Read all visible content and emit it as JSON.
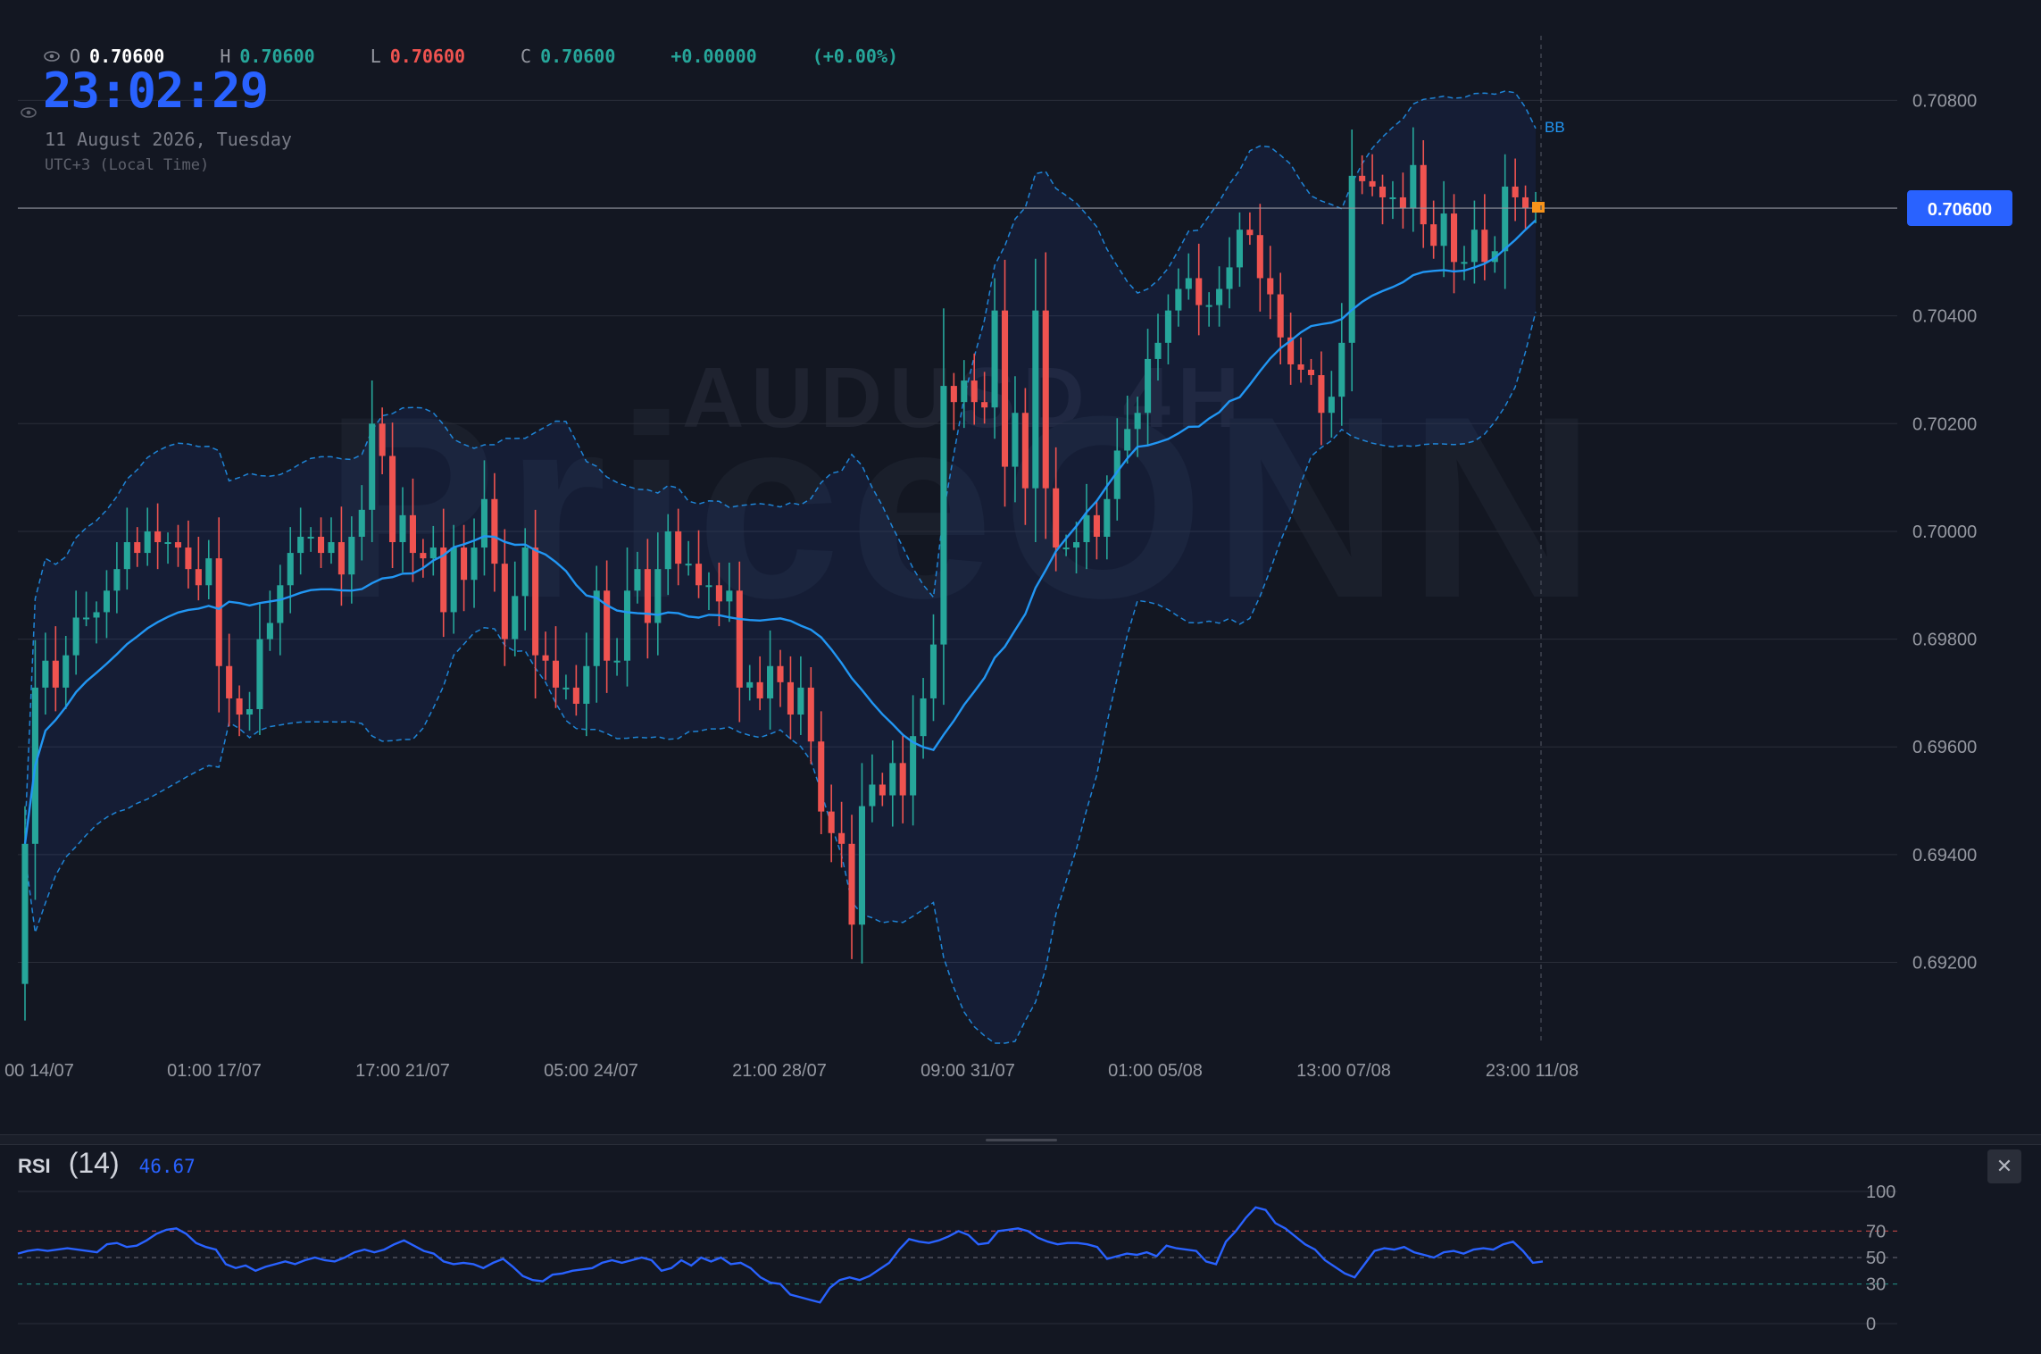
{
  "watermark": {
    "line1": "AUDUSD 4H",
    "line2": "PriceONN"
  },
  "ohlc": {
    "o_label": "O",
    "o_value": "0.70600",
    "h_label": "H",
    "h_value": "0.70600",
    "l_label": "L",
    "l_value": "0.70600",
    "c_label": "C",
    "c_value": "0.70600",
    "change": "+0.00000",
    "change_pct": "(+0.00%)"
  },
  "clock": {
    "time": "23:02:29",
    "date": "11 August 2026, Tuesday",
    "timezone": "UTC+3 (Local Time)"
  },
  "colors": {
    "background": "#131722",
    "up": "#26a69a",
    "down": "#ef5350",
    "basis": "#2196f3",
    "band": "#2962ff",
    "price_tag": "#2962ff",
    "rsi": "#2962ff",
    "grid": "#2a2e39",
    "text": "#d1d4dc"
  },
  "chart_data": [
    {
      "type": "candlestick",
      "symbol": "AUDUSD",
      "timeframe": "4H",
      "indicator_label": "BB",
      "last_price": "0.70600",
      "y_ticks": [
        "0.70800",
        "0.70600",
        "0.70400",
        "0.70200",
        "0.70000",
        "0.69800",
        "0.69600",
        "0.69400",
        "0.69200"
      ],
      "ylim": [
        0.6905,
        0.7092
      ],
      "x_ticks": [
        "00 14/07",
        "01:00 17/07",
        "17:00 21/07",
        "05:00 24/07",
        "21:00 28/07",
        "09:00 31/07",
        "01:00 05/08",
        "13:00 07/08",
        "23:00 11/08"
      ],
      "candles_close": [
        0.6942,
        0.6971,
        0.6976,
        0.6971,
        0.6977,
        0.6984,
        0.6984,
        0.6985,
        0.6989,
        0.6993,
        0.6998,
        0.6996,
        0.7,
        0.6998,
        0.6998,
        0.6997,
        0.6993,
        0.699,
        0.6995,
        0.6975,
        0.6969,
        0.6966,
        0.6967,
        0.698,
        0.6983,
        0.699,
        0.6996,
        0.6999,
        0.6999,
        0.6996,
        0.6998,
        0.6992,
        0.6999,
        0.7004,
        0.702,
        0.7014,
        0.6998,
        0.7003,
        0.6996,
        0.6995,
        0.6997,
        0.6985,
        0.6997,
        0.6991,
        0.6997,
        0.7006,
        0.6994,
        0.698,
        0.6988,
        0.6997,
        0.6977,
        0.6976,
        0.6971,
        0.6971,
        0.6968,
        0.6975,
        0.6989,
        0.6976,
        0.6976,
        0.6989,
        0.6993,
        0.6983,
        0.6993,
        0.7,
        0.6994,
        0.6994,
        0.699,
        0.699,
        0.6987,
        0.6989,
        0.6971,
        0.6972,
        0.6969,
        0.6975,
        0.6972,
        0.6966,
        0.6971,
        0.6961,
        0.6948,
        0.6944,
        0.6942,
        0.6927,
        0.6949,
        0.6953,
        0.6951,
        0.6957,
        0.6951,
        0.6962,
        0.6969,
        0.6979,
        0.7027,
        0.7024,
        0.7028,
        0.7024,
        0.7023,
        0.7041,
        0.7012,
        0.7022,
        0.7008,
        0.7041,
        0.7008,
        0.6997,
        0.6997,
        0.6998,
        0.7003,
        0.6999,
        0.7006,
        0.7015,
        0.7019,
        0.7022,
        0.7032,
        0.7035,
        0.7041,
        0.7045,
        0.7047,
        0.7042,
        0.7042,
        0.7045,
        0.7049,
        0.7056,
        0.7055,
        0.7047,
        0.7044,
        0.7036,
        0.7031,
        0.703,
        0.7029,
        0.7022,
        0.7025,
        0.7035,
        0.7066,
        0.7065,
        0.7064,
        0.7062,
        0.7062,
        0.706,
        0.7068,
        0.7057,
        0.7053,
        0.7059,
        0.705,
        0.705,
        0.7056,
        0.705,
        0.7052,
        0.7064,
        0.7062,
        0.706,
        0.706
      ],
      "series": [
        {
          "name": "BB",
          "kind": "bollinger-bands",
          "period": 20
        }
      ]
    },
    {
      "type": "line",
      "title": "RSI",
      "length": "(14)",
      "last_value": "46.67",
      "y_ticks": [
        "100",
        "70",
        "50",
        "30",
        "0"
      ],
      "ylim": [
        0,
        100
      ],
      "levels": [
        70,
        50,
        30
      ],
      "values": [
        53,
        55,
        56,
        55,
        56,
        57,
        56,
        55,
        54,
        60,
        61,
        58,
        59,
        63,
        68,
        71,
        72,
        68,
        61,
        58,
        56,
        45,
        42,
        44,
        40,
        43,
        45,
        47,
        45,
        48,
        50,
        48,
        47,
        50,
        54,
        56,
        54,
        56,
        60,
        63,
        59,
        55,
        53,
        47,
        45,
        46,
        45,
        42,
        46,
        49,
        43,
        36,
        33,
        32,
        37,
        38,
        40,
        41,
        42,
        46,
        48,
        46,
        48,
        50,
        48,
        40,
        42,
        48,
        44,
        50,
        47,
        50,
        45,
        46,
        42,
        35,
        31,
        30,
        22,
        20,
        18,
        16,
        27,
        33,
        35,
        33,
        36,
        41,
        46,
        56,
        64,
        62,
        61,
        63,
        66,
        70,
        67,
        60,
        61,
        70,
        71,
        72,
        70,
        65,
        62,
        60,
        61,
        61,
        60,
        58,
        49,
        51,
        53,
        52,
        54,
        51,
        59,
        57,
        56,
        55,
        47,
        45,
        62,
        70,
        80,
        88,
        86,
        76,
        72,
        66,
        60,
        56,
        48,
        43,
        38,
        35,
        45,
        55,
        57,
        56,
        58,
        54,
        52,
        50,
        54,
        55,
        53,
        56,
        57,
        56,
        60,
        62,
        55,
        46,
        47
      ]
    }
  ]
}
